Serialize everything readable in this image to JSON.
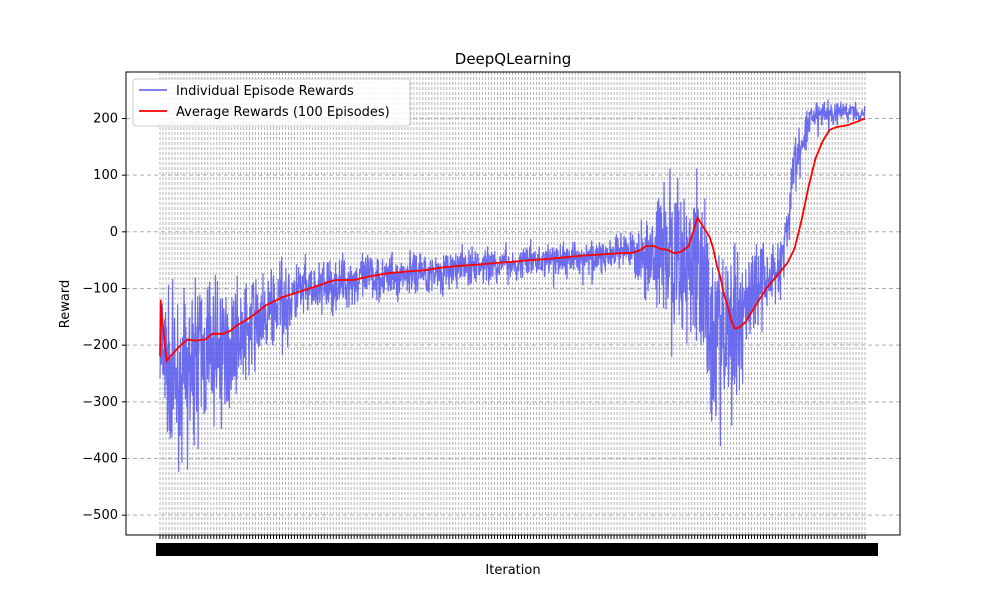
{
  "chart_data": {
    "type": "line",
    "title": "DeepQLearning",
    "xlabel": "Iteration",
    "ylabel": "Reward",
    "ylim": [
      -535,
      282
    ],
    "yticks": [
      -500,
      -400,
      -300,
      -200,
      -100,
      0,
      100,
      200
    ],
    "grid": true,
    "legend": "top-left",
    "x_range": [
      1,
      2000
    ],
    "series": [
      {
        "name": "Individual Episode Rewards",
        "color": "#5555ee",
        "keypoints": [
          [
            1,
            -220
          ],
          [
            30,
            -250
          ],
          [
            60,
            -260
          ],
          [
            100,
            -230
          ],
          [
            150,
            -210
          ],
          [
            200,
            -200
          ],
          [
            260,
            -160
          ],
          [
            300,
            -150
          ],
          [
            350,
            -120
          ],
          [
            400,
            -110
          ],
          [
            450,
            -100
          ],
          [
            500,
            -95
          ],
          [
            550,
            -85
          ],
          [
            600,
            -80
          ],
          [
            700,
            -75
          ],
          [
            800,
            -70
          ],
          [
            900,
            -60
          ],
          [
            1000,
            -55
          ],
          [
            1100,
            -50
          ],
          [
            1200,
            -45
          ],
          [
            1300,
            -40
          ],
          [
            1350,
            -40
          ],
          [
            1400,
            -35
          ],
          [
            1450,
            -40
          ],
          [
            1480,
            -60
          ],
          [
            1500,
            -40
          ],
          [
            1540,
            -60
          ],
          [
            1560,
            -150
          ],
          [
            1600,
            -200
          ],
          [
            1640,
            -150
          ],
          [
            1680,
            -100
          ],
          [
            1720,
            -90
          ],
          [
            1760,
            -60
          ],
          [
            1780,
            0
          ],
          [
            1800,
            120
          ],
          [
            1840,
            190
          ],
          [
            1880,
            210
          ],
          [
            1920,
            210
          ],
          [
            1960,
            215
          ],
          [
            2000,
            210
          ]
        ],
        "noise": [
          [
            1,
            110
          ],
          [
            150,
            100
          ],
          [
            300,
            55
          ],
          [
            500,
            40
          ],
          [
            700,
            30
          ],
          [
            1000,
            25
          ],
          [
            1300,
            25
          ],
          [
            1400,
            60
          ],
          [
            1440,
            130
          ],
          [
            1520,
            120
          ],
          [
            1560,
            150
          ],
          [
            1620,
            140
          ],
          [
            1700,
            60
          ],
          [
            1780,
            50
          ],
          [
            1830,
            30
          ],
          [
            1900,
            20
          ],
          [
            2000,
            15
          ]
        ]
      },
      {
        "name": "Average Rewards (100 Episodes)",
        "color": "#ff0000",
        "points": [
          [
            1,
            -220
          ],
          [
            3,
            -120
          ],
          [
            6,
            -150
          ],
          [
            10,
            -170
          ],
          [
            15,
            -200
          ],
          [
            20,
            -228
          ],
          [
            30,
            -220
          ],
          [
            45,
            -210
          ],
          [
            60,
            -200
          ],
          [
            80,
            -190
          ],
          [
            100,
            -192
          ],
          [
            130,
            -190
          ],
          [
            150,
            -180
          ],
          [
            180,
            -180
          ],
          [
            200,
            -175
          ],
          [
            220,
            -165
          ],
          [
            260,
            -150
          ],
          [
            300,
            -130
          ],
          [
            350,
            -115
          ],
          [
            400,
            -105
          ],
          [
            450,
            -95
          ],
          [
            480,
            -88
          ],
          [
            500,
            -85
          ],
          [
            550,
            -85
          ],
          [
            600,
            -78
          ],
          [
            650,
            -73
          ],
          [
            700,
            -70
          ],
          [
            750,
            -68
          ],
          [
            800,
            -63
          ],
          [
            850,
            -60
          ],
          [
            900,
            -58
          ],
          [
            950,
            -55
          ],
          [
            1000,
            -53
          ],
          [
            1050,
            -50
          ],
          [
            1100,
            -48
          ],
          [
            1150,
            -45
          ],
          [
            1200,
            -42
          ],
          [
            1250,
            -40
          ],
          [
            1300,
            -38
          ],
          [
            1340,
            -37
          ],
          [
            1360,
            -33
          ],
          [
            1380,
            -25
          ],
          [
            1400,
            -25
          ],
          [
            1420,
            -30
          ],
          [
            1440,
            -32
          ],
          [
            1460,
            -38
          ],
          [
            1480,
            -35
          ],
          [
            1500,
            -25
          ],
          [
            1515,
            5
          ],
          [
            1525,
            25
          ],
          [
            1540,
            10
          ],
          [
            1560,
            -10
          ],
          [
            1570,
            -30
          ],
          [
            1580,
            -60
          ],
          [
            1590,
            -80
          ],
          [
            1600,
            -110
          ],
          [
            1610,
            -130
          ],
          [
            1620,
            -155
          ],
          [
            1630,
            -170
          ],
          [
            1640,
            -170
          ],
          [
            1660,
            -160
          ],
          [
            1680,
            -140
          ],
          [
            1700,
            -120
          ],
          [
            1720,
            -100
          ],
          [
            1740,
            -85
          ],
          [
            1760,
            -70
          ],
          [
            1780,
            -55
          ],
          [
            1800,
            -30
          ],
          [
            1820,
            20
          ],
          [
            1840,
            80
          ],
          [
            1860,
            130
          ],
          [
            1880,
            160
          ],
          [
            1900,
            180
          ],
          [
            1920,
            185
          ],
          [
            1950,
            188
          ],
          [
            1980,
            195
          ],
          [
            2000,
            200
          ]
        ]
      }
    ]
  }
}
